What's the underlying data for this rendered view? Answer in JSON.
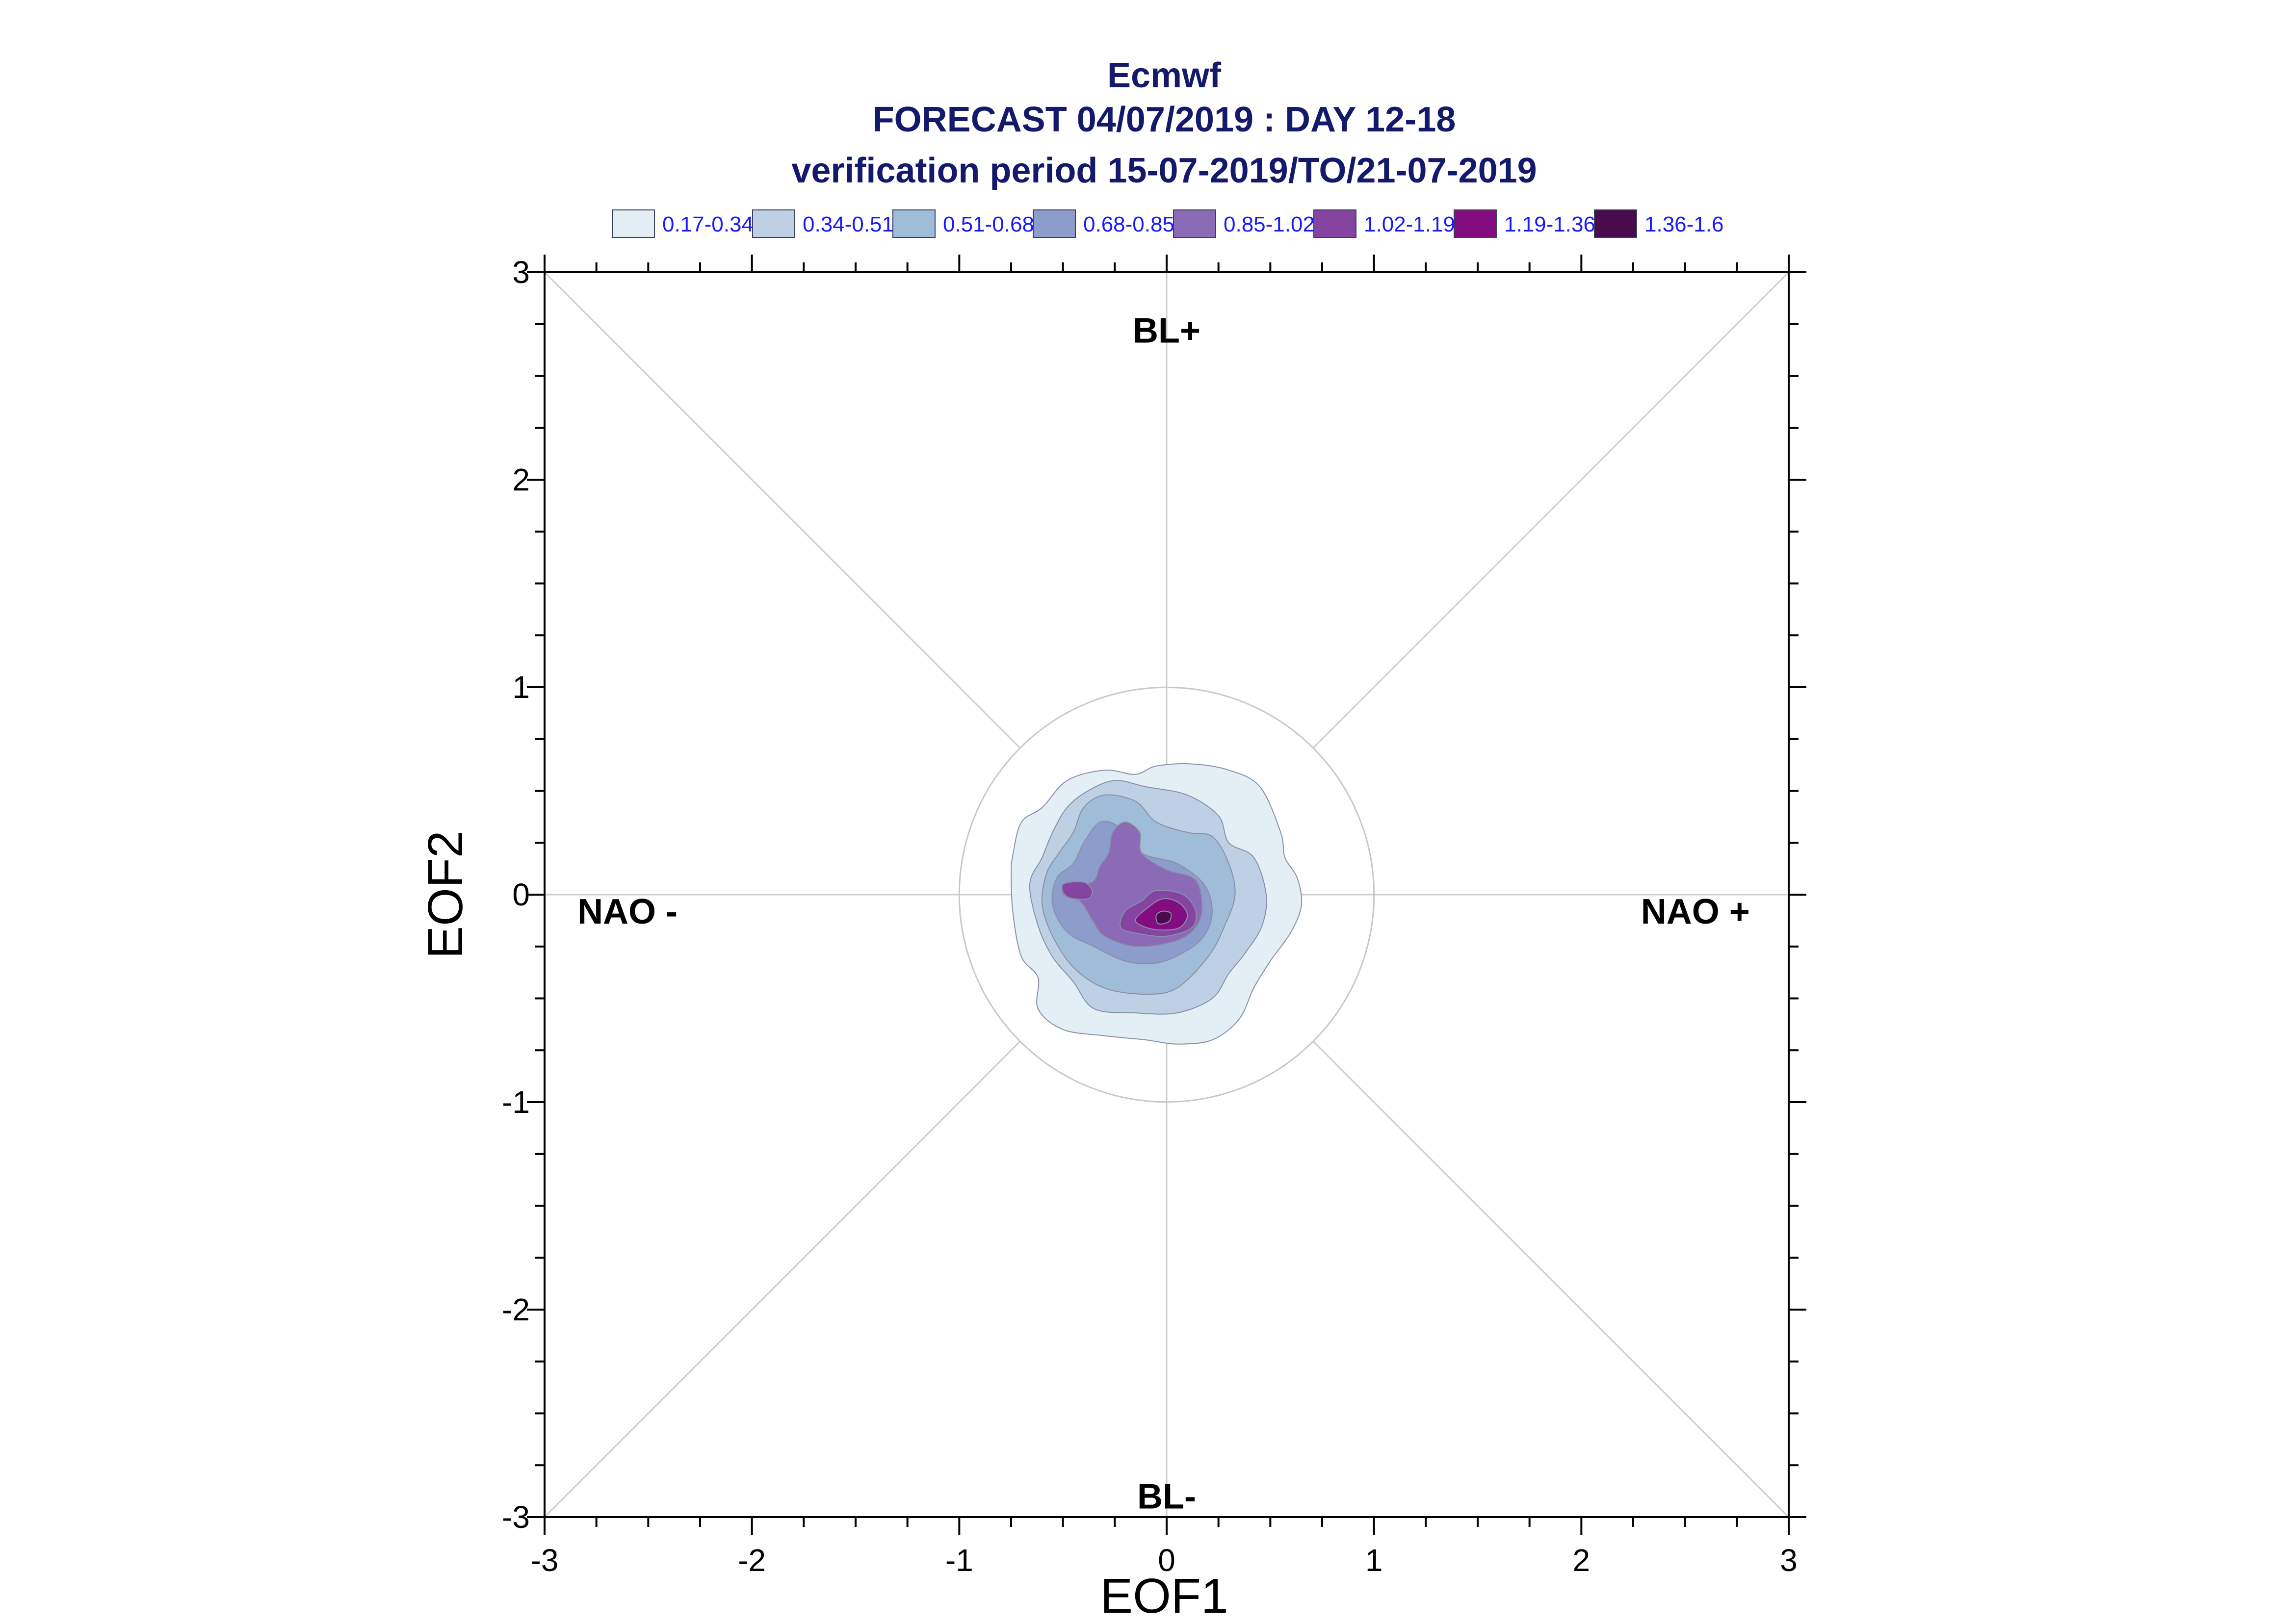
{
  "chart_data": {
    "type": "contour",
    "title": "Ecmwf",
    "subtitle": "FORECAST 04/07/2019 : DAY 12-18",
    "subtitle2": "verification period 15-07-2019/TO/21-07-2019",
    "xlabel": "EOF1",
    "ylabel": "EOF2",
    "xlim": [
      -3,
      3
    ],
    "ylim": [
      -3,
      3
    ],
    "xticks": [
      "-3",
      "-2",
      "-1",
      "0",
      "1",
      "2",
      "3"
    ],
    "yticks": [
      "-3",
      "-2",
      "-1",
      "0",
      "1",
      "2",
      "3"
    ],
    "reference_circle_radius": 1,
    "regime_labels": [
      {
        "text": "BL+",
        "x": 0,
        "y": 2.72
      },
      {
        "text": "BL-",
        "x": 0,
        "y": -2.9
      },
      {
        "text": "NAO -",
        "x": -2.6,
        "y": -0.08
      },
      {
        "text": "NAO +",
        "x": 2.55,
        "y": -0.08
      }
    ],
    "legend": [
      {
        "label": "0.17-0.34",
        "color": "#e4eef5"
      },
      {
        "label": "0.34-0.51",
        "color": "#bed1e4"
      },
      {
        "label": "0.51-0.68",
        "color": "#9fbcd9"
      },
      {
        "label": "0.68-0.85",
        "color": "#8c9ccb"
      },
      {
        "label": "0.85-1.02",
        "color": "#8b6bb5"
      },
      {
        "label": "1.02-1.19",
        "color": "#84449f"
      },
      {
        "label": "1.19-1.36",
        "color": "#830d80"
      },
      {
        "label": "1.36-1.6",
        "color": "#4a0a4e"
      }
    ],
    "contours": [
      {
        "level": "0.17-0.34",
        "points": [
          [
            -0.05,
            0.62
          ],
          [
            0.12,
            0.63
          ],
          [
            0.3,
            0.6
          ],
          [
            0.45,
            0.52
          ],
          [
            0.55,
            0.3
          ],
          [
            0.57,
            0.18
          ],
          [
            0.63,
            0.08
          ],
          [
            0.65,
            -0.05
          ],
          [
            0.6,
            -0.18
          ],
          [
            0.5,
            -0.32
          ],
          [
            0.42,
            -0.45
          ],
          [
            0.35,
            -0.6
          ],
          [
            0.22,
            -0.7
          ],
          [
            0.05,
            -0.72
          ],
          [
            -0.1,
            -0.7
          ],
          [
            -0.3,
            -0.68
          ],
          [
            -0.5,
            -0.65
          ],
          [
            -0.62,
            -0.55
          ],
          [
            -0.62,
            -0.4
          ],
          [
            -0.7,
            -0.3
          ],
          [
            -0.74,
            -0.1
          ],
          [
            -0.75,
            0.1
          ],
          [
            -0.74,
            0.2
          ],
          [
            -0.7,
            0.35
          ],
          [
            -0.6,
            0.42
          ],
          [
            -0.48,
            0.55
          ],
          [
            -0.3,
            0.6
          ],
          [
            -0.15,
            0.58
          ]
        ]
      },
      {
        "level": "0.34-0.51",
        "points": [
          [
            -0.25,
            0.55
          ],
          [
            -0.1,
            0.52
          ],
          [
            0.1,
            0.48
          ],
          [
            0.25,
            0.38
          ],
          [
            0.3,
            0.25
          ],
          [
            0.42,
            0.18
          ],
          [
            0.48,
            0.0
          ],
          [
            0.46,
            -0.15
          ],
          [
            0.38,
            -0.28
          ],
          [
            0.3,
            -0.38
          ],
          [
            0.22,
            -0.5
          ],
          [
            0.05,
            -0.57
          ],
          [
            -0.15,
            -0.57
          ],
          [
            -0.35,
            -0.55
          ],
          [
            -0.45,
            -0.42
          ],
          [
            -0.55,
            -0.3
          ],
          [
            -0.62,
            -0.15
          ],
          [
            -0.66,
            0.05
          ],
          [
            -0.6,
            0.18
          ],
          [
            -0.55,
            0.3
          ],
          [
            -0.48,
            0.42
          ],
          [
            -0.38,
            0.5
          ]
        ]
      },
      {
        "level": "0.51-0.68",
        "points": [
          [
            -0.3,
            0.48
          ],
          [
            -0.15,
            0.45
          ],
          [
            -0.05,
            0.35
          ],
          [
            0.1,
            0.3
          ],
          [
            0.22,
            0.28
          ],
          [
            0.3,
            0.15
          ],
          [
            0.33,
            0.0
          ],
          [
            0.28,
            -0.15
          ],
          [
            0.2,
            -0.3
          ],
          [
            0.05,
            -0.45
          ],
          [
            -0.1,
            -0.48
          ],
          [
            -0.3,
            -0.45
          ],
          [
            -0.45,
            -0.35
          ],
          [
            -0.55,
            -0.2
          ],
          [
            -0.6,
            -0.05
          ],
          [
            -0.58,
            0.1
          ],
          [
            -0.52,
            0.2
          ],
          [
            -0.45,
            0.3
          ],
          [
            -0.4,
            0.42
          ]
        ]
      },
      {
        "level": "0.68-0.85",
        "points": [
          [
            -0.32,
            0.35
          ],
          [
            -0.22,
            0.32
          ],
          [
            -0.12,
            0.2
          ],
          [
            0.05,
            0.15
          ],
          [
            0.18,
            0.05
          ],
          [
            0.22,
            -0.08
          ],
          [
            0.18,
            -0.2
          ],
          [
            0.08,
            -0.28
          ],
          [
            -0.05,
            -0.33
          ],
          [
            -0.2,
            -0.32
          ],
          [
            -0.35,
            -0.25
          ],
          [
            -0.48,
            -0.18
          ],
          [
            -0.55,
            -0.05
          ],
          [
            -0.53,
            0.08
          ],
          [
            -0.45,
            0.15
          ],
          [
            -0.4,
            0.25
          ]
        ]
      },
      {
        "level": "0.85-1.02",
        "points": [
          [
            -0.2,
            0.35
          ],
          [
            -0.13,
            0.3
          ],
          [
            -0.12,
            0.2
          ],
          [
            0.0,
            0.12
          ],
          [
            0.14,
            0.07
          ],
          [
            0.17,
            -0.08
          ],
          [
            0.12,
            -0.18
          ],
          [
            0.02,
            -0.23
          ],
          [
            -0.15,
            -0.25
          ],
          [
            -0.3,
            -0.2
          ],
          [
            -0.36,
            -0.12
          ],
          [
            -0.42,
            -0.03
          ],
          [
            -0.5,
            0.0
          ],
          [
            -0.48,
            0.05
          ],
          [
            -0.36,
            0.06
          ],
          [
            -0.32,
            0.14
          ],
          [
            -0.28,
            0.2
          ],
          [
            -0.26,
            0.3
          ]
        ]
      },
      {
        "level": "1.02-1.19",
        "points": [
          [
            -0.05,
            0.02
          ],
          [
            0.08,
            0.0
          ],
          [
            0.14,
            -0.08
          ],
          [
            0.12,
            -0.16
          ],
          [
            0.0,
            -0.2
          ],
          [
            -0.12,
            -0.19
          ],
          [
            -0.22,
            -0.16
          ],
          [
            -0.2,
            -0.08
          ],
          [
            -0.12,
            -0.03
          ]
        ]
      },
      {
        "level": "1.02-1.19",
        "points": [
          [
            -0.5,
            0.05
          ],
          [
            -0.4,
            0.06
          ],
          [
            -0.36,
            0.02
          ],
          [
            -0.38,
            -0.02
          ],
          [
            -0.48,
            -0.01
          ]
        ]
      },
      {
        "level": "1.19-1.36",
        "points": [
          [
            -0.02,
            -0.02
          ],
          [
            0.06,
            -0.04
          ],
          [
            0.1,
            -0.1
          ],
          [
            0.06,
            -0.16
          ],
          [
            -0.04,
            -0.17
          ],
          [
            -0.12,
            -0.15
          ],
          [
            -0.15,
            -0.12
          ],
          [
            -0.1,
            -0.07
          ]
        ]
      },
      {
        "level": "1.36-1.6",
        "points": [
          [
            -0.02,
            -0.08
          ],
          [
            0.02,
            -0.09
          ],
          [
            0.01,
            -0.13
          ],
          [
            -0.04,
            -0.14
          ],
          [
            -0.05,
            -0.1
          ]
        ]
      }
    ]
  }
}
